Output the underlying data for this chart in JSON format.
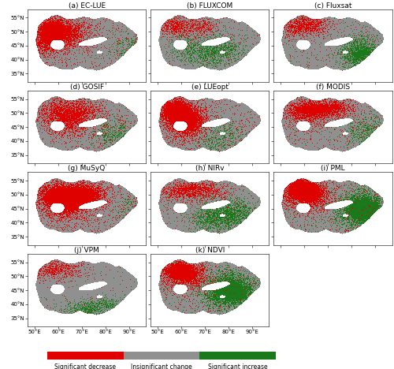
{
  "titles": [
    "(a) EC-LUE",
    "(b) FLUXCOM",
    "(c) Fluxsat",
    "(d) GOSIF",
    "(e) LUEopt",
    "(f) MODIS",
    "(g) MuSyQ",
    "(h) NIRv",
    "(i) PML",
    "(j) VPM",
    "(k) NDVI"
  ],
  "xlim": [
    47,
    97
  ],
  "ylim": [
    32,
    58
  ],
  "xticks": [
    50,
    60,
    70,
    80,
    90
  ],
  "yticks": [
    35,
    40,
    45,
    50,
    55
  ],
  "xlabel_ticks": [
    "50°E",
    "60°E",
    "70°E",
    "80°E",
    "90°E"
  ],
  "ylabel_ticks": [
    "35°N",
    "40°N",
    "45°N",
    "50°N",
    "55°N"
  ],
  "color_decrease": "#E00000",
  "color_insignificant": "#909090",
  "color_increase": "#1A7A1A",
  "legend_labels": [
    "Significant decrease",
    "Insignificant change",
    "Significant increase"
  ],
  "figsize": [
    5.0,
    4.68
  ],
  "dpi": 100,
  "background_color": "#FFFFFF",
  "title_fontsize": 6.5,
  "tick_fontsize": 5.0,
  "legend_fontsize": 5.5
}
